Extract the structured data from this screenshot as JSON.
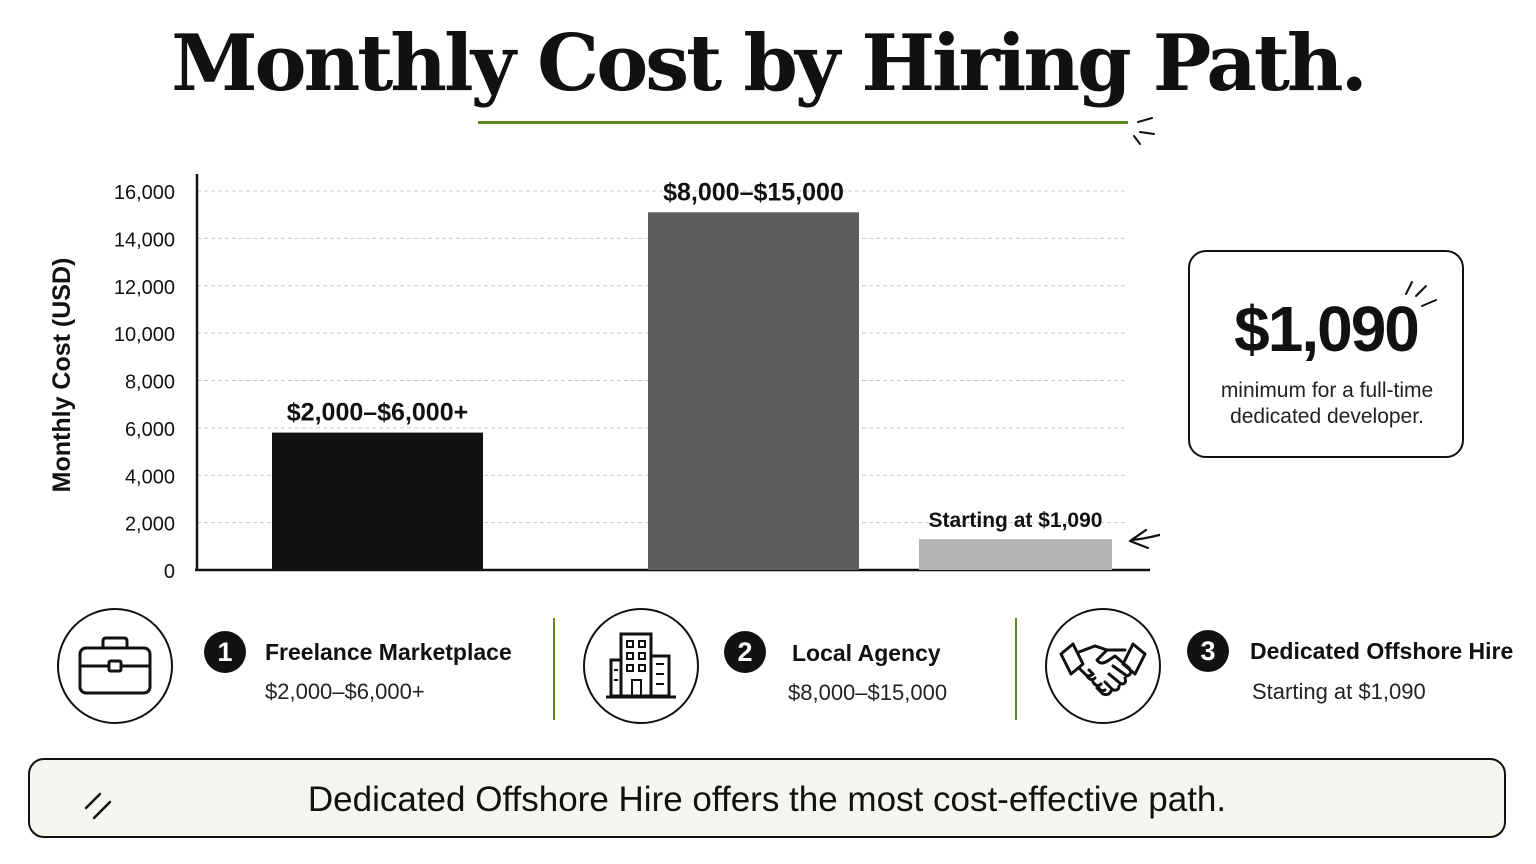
{
  "title": "Monthly Cost by Hiring Path.",
  "colors": {
    "accent": "#5e8a1c",
    "freelance_bar": "#111111",
    "agency_bar": "#5d5d5d",
    "offshore_bar": "#b5b5b5",
    "banner_bg": "#f6f5ef"
  },
  "chart_data": {
    "type": "bar",
    "categories": [
      "Freelance Marketplace",
      "Local Agency",
      "Dedicated Offshore Hire"
    ],
    "values": [
      5800,
      15100,
      1300
    ],
    "data_labels": [
      "$2,000–$6,000+",
      "$8,000–$15,000",
      "Starting at $1,090"
    ],
    "ylabel": "Monthly Cost (USD)",
    "xlabel": "",
    "ylim": [
      0,
      16000
    ],
    "yticks": [
      0,
      2000,
      4000,
      6000,
      8000,
      10000,
      12000,
      14000,
      16000
    ],
    "ytick_labels": [
      "0",
      "2,000",
      "4,000",
      "6,000",
      "8,000",
      "10,000",
      "12,000",
      "14,000",
      "16,000"
    ],
    "grid": true,
    "legend": "none",
    "bar_colors": [
      "#111111",
      "#5d5d5d",
      "#b5b5b5"
    ]
  },
  "callout": {
    "value": "$1,090",
    "text": "minimum for a full-time dedicated developer."
  },
  "paths": [
    {
      "number": "1",
      "name": "Freelance Marketplace",
      "cost": "$2,000–$6,000+",
      "icon": "briefcase-icon"
    },
    {
      "number": "2",
      "name": "Local Agency",
      "cost": "$8,000–$15,000",
      "icon": "office-building-icon"
    },
    {
      "number": "3",
      "name": "Dedicated Offshore Hire",
      "cost": "Starting at $1,090",
      "icon": "handshake-icon"
    }
  ],
  "banner": {
    "text": "Dedicated Offshore Hire offers the most cost-effective path."
  }
}
